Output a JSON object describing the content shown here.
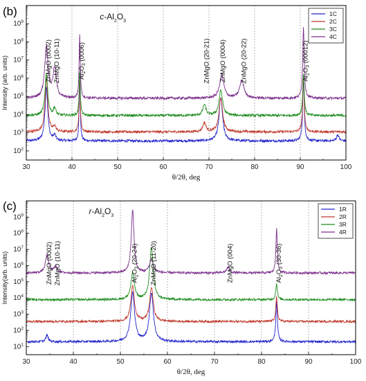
{
  "chart_data": [
    {
      "type": "line",
      "panel_label": "(b)",
      "substrate_label": {
        "prefix": "c",
        "suffix": "-Al2O3"
      },
      "xlabel": "θ/2θ, deg",
      "ylabel": "Intensity (arb. units)",
      "xlim": [
        30,
        100
      ],
      "ylim_exp": [
        1.5,
        10
      ],
      "yscale": "log",
      "x_ticks": [
        30,
        40,
        50,
        60,
        70,
        80,
        90,
        100
      ],
      "y_tick_exponents": [
        2,
        3,
        4,
        5,
        6,
        7,
        8,
        9
      ],
      "legend_position": "top-right",
      "series": [
        {
          "name": "1C",
          "color": "#2222cc",
          "baseline_exp": 2.55,
          "peaks": [
            {
              "x": 34.4,
              "h": 3.0,
              "w": 0.35
            },
            {
              "x": 36.2,
              "h": 0.3,
              "w": 0.3
            },
            {
              "x": 41.7,
              "h": 3.3,
              "w": 0.15
            },
            {
              "x": 72.6,
              "h": 2.4,
              "w": 0.45
            },
            {
              "x": 90.7,
              "h": 3.5,
              "w": 0.2
            },
            {
              "x": 98.2,
              "h": 0.35,
              "w": 0.3
            }
          ]
        },
        {
          "name": "2C",
          "color": "#c0392b",
          "baseline_exp": 3.05,
          "peaks": [
            {
              "x": 34.4,
              "h": 3.0,
              "w": 0.35
            },
            {
              "x": 36.2,
              "h": 0.3,
              "w": 0.3
            },
            {
              "x": 41.7,
              "h": 3.2,
              "w": 0.15
            },
            {
              "x": 69.0,
              "h": 0.5,
              "w": 0.4
            },
            {
              "x": 72.6,
              "h": 1.9,
              "w": 0.45
            },
            {
              "x": 90.7,
              "h": 3.1,
              "w": 0.2
            }
          ]
        },
        {
          "name": "3C",
          "color": "#1e8c1e",
          "baseline_exp": 3.95,
          "peaks": [
            {
              "x": 34.4,
              "h": 2.3,
              "w": 0.35
            },
            {
              "x": 36.2,
              "h": 0.4,
              "w": 0.3
            },
            {
              "x": 41.7,
              "h": 2.5,
              "w": 0.15
            },
            {
              "x": 69.0,
              "h": 0.6,
              "w": 0.4
            },
            {
              "x": 72.6,
              "h": 1.4,
              "w": 0.45
            },
            {
              "x": 90.7,
              "h": 2.3,
              "w": 0.2
            }
          ]
        },
        {
          "name": "4C",
          "color": "#7b2d8b",
          "baseline_exp": 4.9,
          "peaks": [
            {
              "x": 34.4,
              "h": 2.8,
              "w": 0.45
            },
            {
              "x": 36.2,
              "h": 1.6,
              "w": 0.45
            },
            {
              "x": 41.7,
              "h": 3.5,
              "w": 0.15
            },
            {
              "x": 72.8,
              "h": 1.3,
              "w": 0.55
            },
            {
              "x": 77.2,
              "h": 1.0,
              "w": 0.55
            },
            {
              "x": 90.7,
              "h": 3.9,
              "w": 0.2
            }
          ]
        }
      ],
      "annotations": [
        {
          "x": 34.4,
          "text": "ZnMgO (0002)"
        },
        {
          "x": 36.2,
          "text": "ZnMgO (10-11)"
        },
        {
          "x": 41.7,
          "text": "Al2O3 (0006)"
        },
        {
          "x": 69.0,
          "text": "ZnMgO (20-21)"
        },
        {
          "x": 72.6,
          "text": "ZnMgO (0004)"
        },
        {
          "x": 77.2,
          "text": "ZnMgO (20-22)"
        },
        {
          "x": 90.7,
          "text": "Al2O3 (00012)"
        }
      ]
    },
    {
      "type": "line",
      "panel_label": "(c)",
      "substrate_label": {
        "prefix": "r",
        "suffix": "-Al2O3"
      },
      "xlabel": "θ/2θ, deg",
      "ylabel": "Intensity(arb. units)",
      "xlim": [
        30,
        100
      ],
      "ylim_exp": [
        0.5,
        10
      ],
      "yscale": "log",
      "x_ticks": [
        30,
        40,
        50,
        60,
        70,
        80,
        90,
        100
      ],
      "y_tick_exponents": [
        1,
        2,
        3,
        4,
        5,
        6,
        7,
        8,
        9
      ],
      "legend_position": "top-right",
      "series": [
        {
          "name": "1R",
          "color": "#2222cc",
          "baseline_exp": 1.3,
          "peaks": [
            {
              "x": 34.4,
              "h": 0.4,
              "w": 0.3
            },
            {
              "x": 52.6,
              "h": 3.0,
              "w": 0.5
            },
            {
              "x": 56.6,
              "h": 3.0,
              "w": 0.5
            },
            {
              "x": 83.2,
              "h": 2.5,
              "w": 0.2
            }
          ]
        },
        {
          "name": "2R",
          "color": "#c0392b",
          "baseline_exp": 2.55,
          "peaks": [
            {
              "x": 52.6,
              "h": 2.2,
              "w": 0.45
            },
            {
              "x": 56.6,
              "h": 2.1,
              "w": 0.45
            },
            {
              "x": 83.2,
              "h": 1.5,
              "w": 0.2
            }
          ]
        },
        {
          "name": "3R",
          "color": "#1e8c1e",
          "baseline_exp": 3.9,
          "peaks": [
            {
              "x": 52.6,
              "h": 1.6,
              "w": 0.45
            },
            {
              "x": 56.6,
              "h": 3.2,
              "w": 0.45
            },
            {
              "x": 83.2,
              "h": 1.0,
              "w": 0.2
            }
          ]
        },
        {
          "name": "4R",
          "color": "#7b2d8b",
          "baseline_exp": 5.55,
          "peaks": [
            {
              "x": 34.4,
              "h": 1.1,
              "w": 0.4
            },
            {
              "x": 36.2,
              "h": 0.4,
              "w": 0.4
            },
            {
              "x": 52.6,
              "h": 3.9,
              "w": 0.35
            },
            {
              "x": 56.6,
              "h": 0.8,
              "w": 0.5
            },
            {
              "x": 72.9,
              "h": 0.35,
              "w": 0.4
            },
            {
              "x": 83.2,
              "h": 2.8,
              "w": 0.18
            }
          ]
        }
      ],
      "annotations": [
        {
          "x": 34.4,
          "text": "ZnMgO (0002)"
        },
        {
          "x": 36.2,
          "text": "ZnMgO (10-11)"
        },
        {
          "x": 52.6,
          "text": "Al2O3 (20-24)"
        },
        {
          "x": 56.6,
          "text": "ZnMgO (11-20)"
        },
        {
          "x": 72.9,
          "text": "ZnMgO (004)"
        },
        {
          "x": 83.2,
          "text": "Al2O3 (30-36)"
        }
      ]
    }
  ]
}
